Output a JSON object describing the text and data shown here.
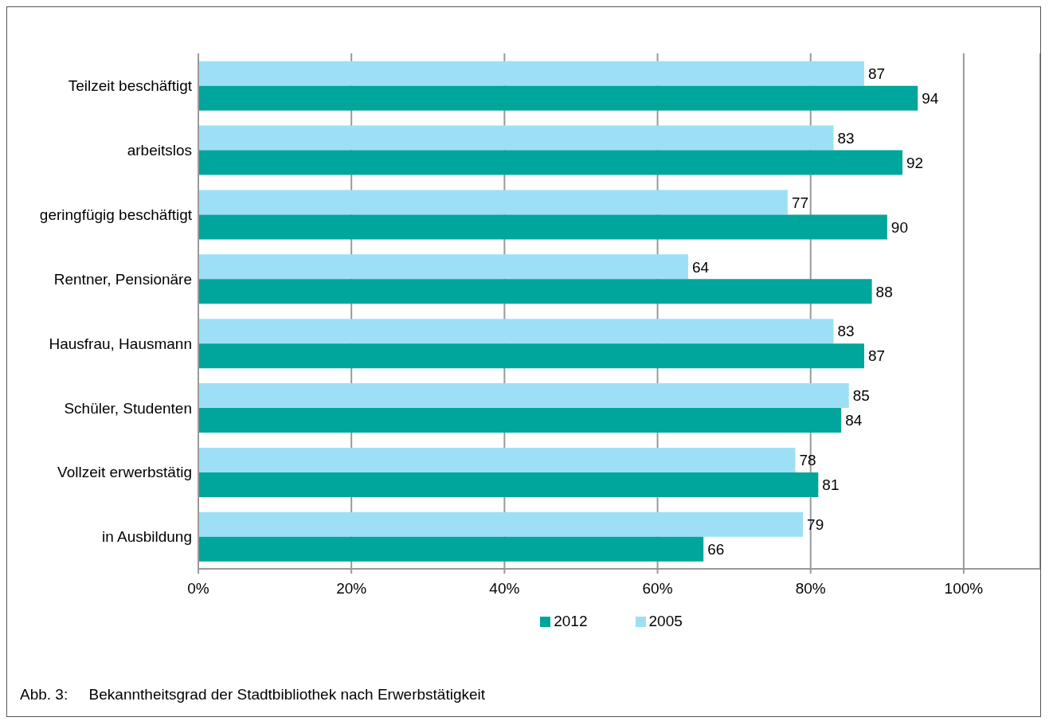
{
  "chart_data": {
    "type": "bar",
    "orientation": "horizontal",
    "categories": [
      "Teilzeit beschäftigt",
      "arbeitslos",
      "geringfügig beschäftigt",
      "Rentner, Pensionäre",
      "Hausfrau, Hausmann",
      "Schüler, Studenten",
      "Vollzeit erwerbstätig",
      "in Ausbildung"
    ],
    "series": [
      {
        "name": "2012",
        "color": "#00a59b",
        "values": [
          94,
          92,
          90,
          88,
          87,
          84,
          81,
          66
        ]
      },
      {
        "name": "2005",
        "color": "#9de0f5",
        "values": [
          87,
          83,
          77,
          64,
          83,
          85,
          78,
          79
        ]
      }
    ],
    "xlim": [
      0,
      110
    ],
    "xticks": [
      {
        "value": 0,
        "label": "0%"
      },
      {
        "value": 20,
        "label": "20%"
      },
      {
        "value": 40,
        "label": "40%"
      },
      {
        "value": 60,
        "label": "60%"
      },
      {
        "value": 80,
        "label": "80%"
      },
      {
        "value": 100,
        "label": "100%"
      }
    ],
    "grid": "x",
    "legend": "bottom",
    "data_labels": true,
    "annotations": [
      "Abb. 3:     Bekanntheitsgrad der Stadtbibliothek nach Erwerbstätigkeit"
    ]
  }
}
